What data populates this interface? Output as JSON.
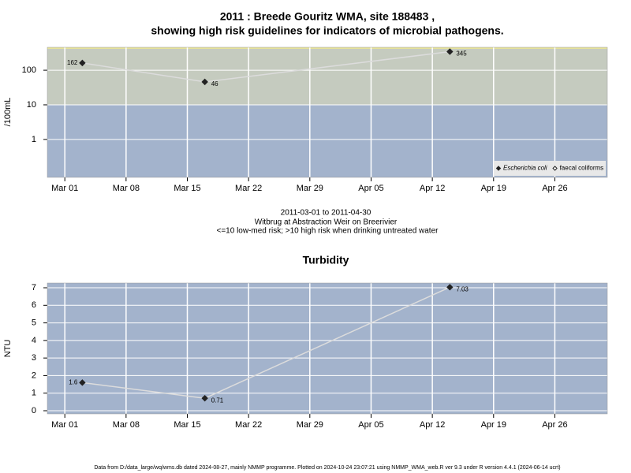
{
  "title": [
    "2011 : Breede Gouritz WMA, site 188483 ,",
    "showing high risk guidelines for indicators of microbial pathogens."
  ],
  "caption": [
    "2011-03-01 to 2011-04-30",
    "Witbrug at Abstraction Weir on Breerivier",
    "<=10 low-med risk; >10 high risk when drinking untreated water"
  ],
  "footer": "Data from D:/data_large/wq/wms.db dated 2024-08-27, mainly NMMP programme. Plotted on 2024-10-24 23:07:21 using NMMP_WMA_web.R ver 9.3 under R version 4.4.1 (2024-06-14 ucrt)",
  "chart_data": [
    {
      "type": "line",
      "y_label": "/100mL",
      "log_y": true,
      "threshold": 10,
      "x": [
        "Mar 03",
        "Mar 17",
        "Apr 14"
      ],
      "series": [
        {
          "name": "Escherichia coli",
          "color": "#222222",
          "marker": "filled",
          "values": [
            162,
            46,
            345
          ]
        },
        {
          "name": "faecal coliforms",
          "color": "#222222",
          "marker": "open",
          "values": [
            null,
            null,
            null
          ]
        }
      ],
      "xlim": [
        "Feb 27",
        "May 02"
      ],
      "xticks": [
        "Mar 01",
        "Mar 08",
        "Mar 15",
        "Mar 22",
        "Mar 29",
        "Apr 05",
        "Apr 12",
        "Apr 19",
        "Apr 26"
      ],
      "ylim": [
        0.08,
        460
      ],
      "yticks": [
        1,
        10,
        100
      ],
      "grid": true,
      "legend": "lower right"
    },
    {
      "type": "line",
      "title": "Turbidity",
      "y_label": "NTU",
      "log_y": false,
      "x": [
        "Mar 03",
        "Mar 17",
        "Apr 14"
      ],
      "series": [
        {
          "name": "Turbidity",
          "color": "#222222",
          "marker": "filled",
          "values": [
            1.6,
            0.71,
            7.03
          ]
        }
      ],
      "xlim": [
        "Feb 27",
        "May 02"
      ],
      "xticks": [
        "Mar 01",
        "Mar 08",
        "Mar 15",
        "Mar 22",
        "Mar 29",
        "Apr 05",
        "Apr 12",
        "Apr 19",
        "Apr 26"
      ],
      "ylim": [
        -0.18,
        7.27
      ],
      "yticks": [
        0,
        1,
        2,
        3,
        4,
        5,
        6,
        7
      ],
      "grid": true
    }
  ]
}
